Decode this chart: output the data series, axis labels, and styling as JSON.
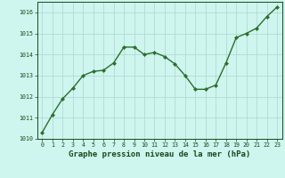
{
  "x": [
    0,
    1,
    2,
    3,
    4,
    5,
    6,
    7,
    8,
    9,
    10,
    11,
    12,
    13,
    14,
    15,
    16,
    17,
    18,
    19,
    20,
    21,
    22,
    23
  ],
  "y": [
    1010.3,
    1011.15,
    1011.9,
    1012.4,
    1013.0,
    1013.2,
    1013.25,
    1013.6,
    1014.35,
    1014.35,
    1014.0,
    1014.1,
    1013.9,
    1013.55,
    1013.0,
    1012.35,
    1012.35,
    1012.55,
    1013.6,
    1014.8,
    1015.0,
    1015.25,
    1015.8,
    1016.25
  ],
  "line_color": "#2d6e2d",
  "marker": "D",
  "marker_size": 2.0,
  "bg_color": "#cef5ee",
  "grid_color": "#aad8d0",
  "xlabel": "Graphe pression niveau de la mer (hPa)",
  "xlabel_color": "#1a4a1a",
  "ylim": [
    1010,
    1016.5
  ],
  "yticks": [
    1010,
    1011,
    1012,
    1013,
    1014,
    1015,
    1016
  ],
  "xticks": [
    0,
    1,
    2,
    3,
    4,
    5,
    6,
    7,
    8,
    9,
    10,
    11,
    12,
    13,
    14,
    15,
    16,
    17,
    18,
    19,
    20,
    21,
    22,
    23
  ],
  "tick_color": "#1a4a1a",
  "tick_fontsize": 4.8,
  "xlabel_fontsize": 6.5,
  "line_width": 1.0
}
